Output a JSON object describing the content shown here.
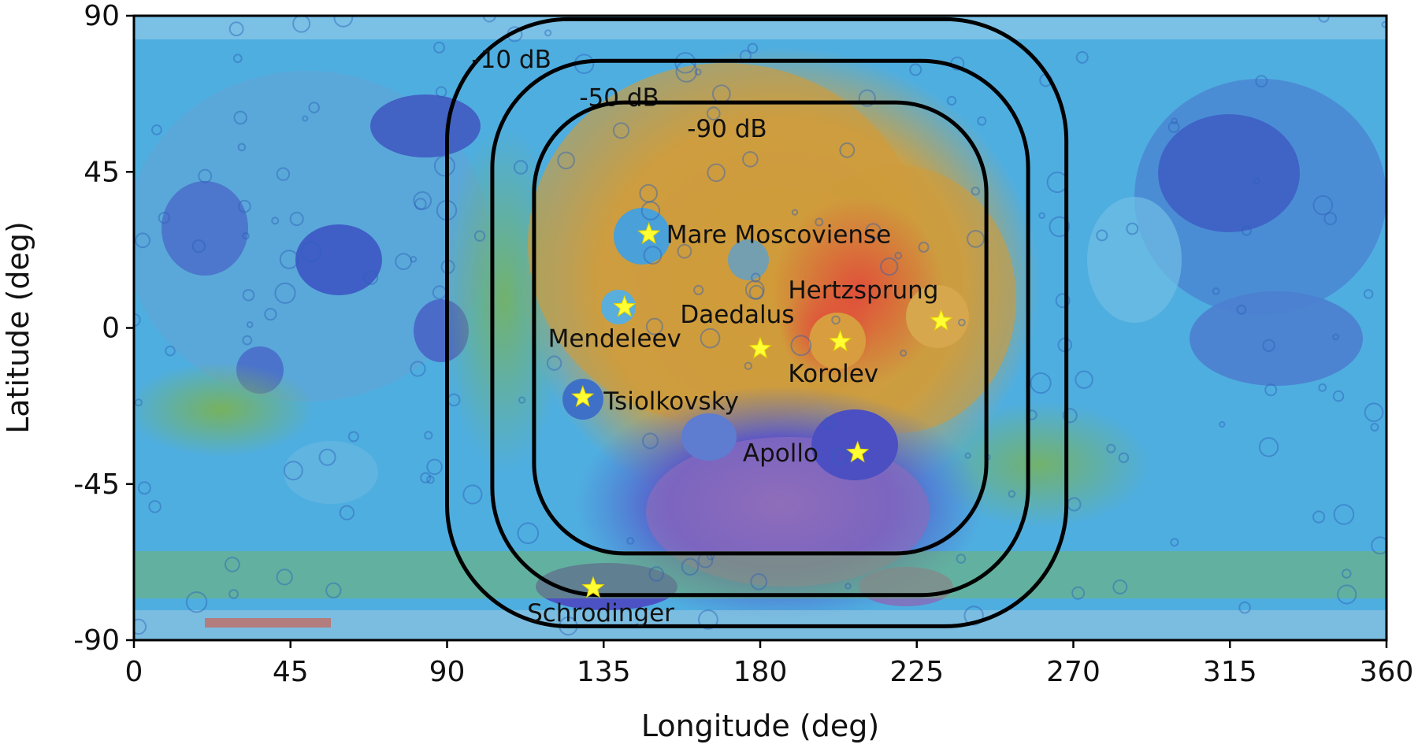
{
  "chart_data": {
    "type": "map-contour",
    "title": "",
    "xlabel": "Longitude (deg)",
    "ylabel": "Latitude (deg)",
    "xlim": [
      0,
      360
    ],
    "ylim": [
      -90,
      90
    ],
    "xticks": [
      0,
      45,
      90,
      135,
      180,
      225,
      270,
      315,
      360
    ],
    "yticks": [
      90,
      45,
      0,
      -45,
      -90
    ],
    "xtick_labels": [
      "0",
      "45",
      "90",
      "135",
      "180",
      "225",
      "270",
      "315",
      "360"
    ],
    "ytick_labels": [
      "90",
      "45",
      "0",
      "-45",
      "-90"
    ],
    "background": "lunar color-coded topography map",
    "contours": [
      {
        "label": "-10 dB",
        "lon_range": [
          90,
          268
        ],
        "lat_range": [
          -86,
          89
        ],
        "label_at": [
          97,
          75
        ]
      },
      {
        "label": "-50 dB",
        "lon_range": [
          103,
          257
        ],
        "lat_range": [
          -77,
          77
        ],
        "label_at": [
          128,
          64
        ]
      },
      {
        "label": "-90 dB",
        "lon_range": [
          115,
          245
        ],
        "lat_range": [
          -65,
          65
        ],
        "label_at": [
          159,
          55
        ]
      }
    ],
    "sites": [
      {
        "name": "Mare Moscoviense",
        "lon": 148,
        "lat": 27,
        "label_at": [
          153,
          27
        ]
      },
      {
        "name": "Mendeleev",
        "lon": 141,
        "lat": 6,
        "label_at": [
          119,
          -3
        ]
      },
      {
        "name": "Daedalus",
        "lon": 180,
        "lat": -6,
        "label_at": [
          157,
          4
        ]
      },
      {
        "name": "Korolev",
        "lon": 203,
        "lat": -4,
        "label_at": [
          188,
          -13
        ]
      },
      {
        "name": "Hertzsprung",
        "lon": 232,
        "lat": 2,
        "label_at": [
          188,
          11
        ]
      },
      {
        "name": "Tsiolkovsky",
        "lon": 129,
        "lat": -20,
        "label_at": [
          135,
          -21
        ]
      },
      {
        "name": "Apollo",
        "lon": 208,
        "lat": -36,
        "label_at": [
          175,
          -36
        ]
      },
      {
        "name": "Schrodinger",
        "lon": 132,
        "lat": -75,
        "label_at": [
          113,
          -82
        ]
      }
    ]
  },
  "colors": {
    "contour": "#000000",
    "star": "#ffff33",
    "ocean_blue": "#49a9e0",
    "deep_blue": "#3a63c8",
    "highland_orange": "#d9a53a",
    "peak_red": "#e1473a",
    "mid_green": "#79b652"
  }
}
